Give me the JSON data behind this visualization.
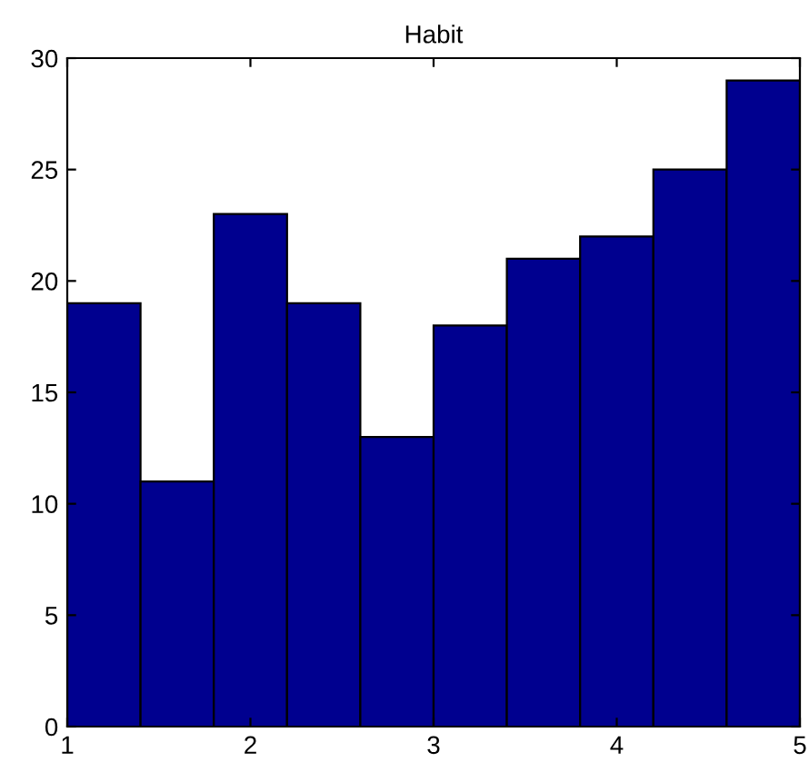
{
  "chart_data": {
    "type": "histogram",
    "title": "Habit",
    "bins": [
      1,
      1.4,
      1.8,
      2.2,
      2.6,
      3,
      3.4,
      3.8,
      4.2,
      4.6,
      5
    ],
    "values": [
      19,
      11,
      23,
      19,
      13,
      18,
      21,
      22,
      25,
      29
    ],
    "color": "#00008f",
    "xlim": [
      1,
      5
    ],
    "xticks": [
      1,
      2,
      3,
      4,
      5
    ],
    "ylim": [
      0,
      30
    ],
    "yticks": [
      0,
      5,
      10,
      15,
      20,
      25,
      30
    ],
    "grid": false
  }
}
